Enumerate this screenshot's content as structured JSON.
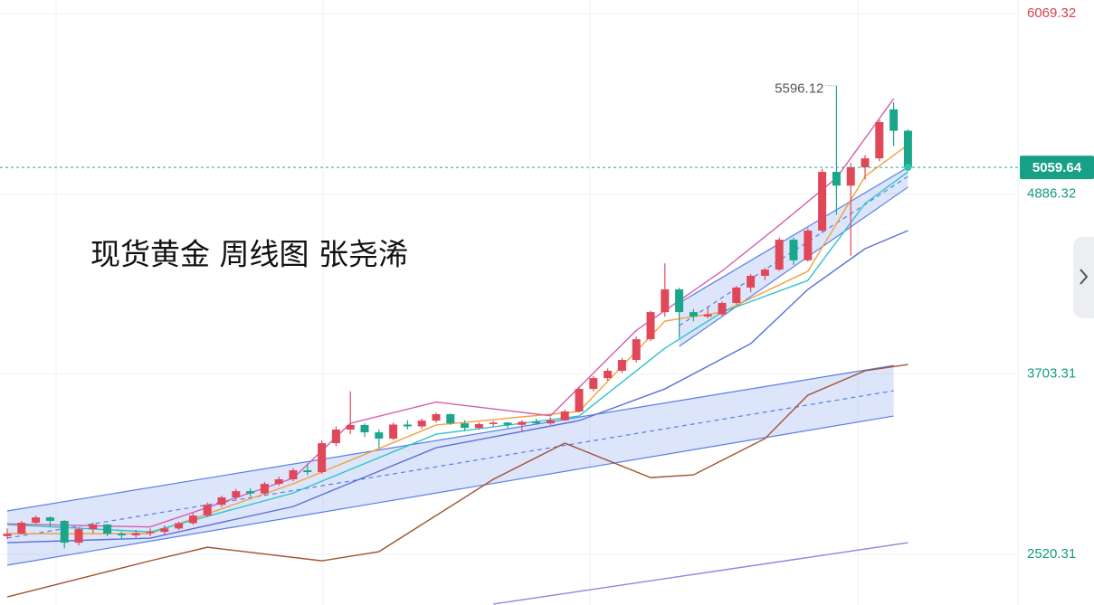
{
  "chart_data": {
    "type": "candlestick",
    "title": "现货黄金 周线图 张尧浠",
    "ylim": [
      2188,
      6158
    ],
    "yticks": [
      6069.32,
      4886.32,
      3703.31,
      2520.31
    ],
    "up_color": "#e0485a",
    "down_color": "#1aa68a",
    "candles": [
      [
        2640,
        2690,
        2620,
        2656
      ],
      [
        2656,
        2740,
        2650,
        2728
      ],
      [
        2728,
        2775,
        2720,
        2763
      ],
      [
        2763,
        2770,
        2700,
        2740
      ],
      [
        2740,
        2745,
        2560,
        2597
      ],
      [
        2597,
        2700,
        2580,
        2686
      ],
      [
        2686,
        2730,
        2660,
        2716
      ],
      [
        2716,
        2720,
        2640,
        2656
      ],
      [
        2656,
        2670,
        2620,
        2645
      ],
      [
        2645,
        2680,
        2630,
        2660
      ],
      [
        2660,
        2690,
        2640,
        2668
      ],
      [
        2668,
        2710,
        2650,
        2690
      ],
      [
        2690,
        2735,
        2680,
        2725
      ],
      [
        2725,
        2790,
        2715,
        2775
      ],
      [
        2775,
        2860,
        2765,
        2846
      ],
      [
        2846,
        2905,
        2830,
        2894
      ],
      [
        2894,
        2950,
        2880,
        2935
      ],
      [
        2935,
        2955,
        2900,
        2920
      ],
      [
        2920,
        2995,
        2910,
        2983
      ],
      [
        2983,
        3030,
        2970,
        3013
      ],
      [
        3013,
        3085,
        3000,
        3072
      ],
      [
        3072,
        3110,
        3040,
        3060
      ],
      [
        3060,
        3270,
        3050,
        3250
      ],
      [
        3250,
        3360,
        3230,
        3339
      ],
      [
        3339,
        3590,
        3310,
        3369
      ],
      [
        3369,
        3380,
        3290,
        3321
      ],
      [
        3321,
        3340,
        3220,
        3280
      ],
      [
        3280,
        3385,
        3270,
        3372
      ],
      [
        3372,
        3400,
        3340,
        3360
      ],
      [
        3360,
        3410,
        3345,
        3398
      ],
      [
        3398,
        3450,
        3385,
        3440
      ],
      [
        3440,
        3445,
        3370,
        3380
      ],
      [
        3380,
        3400,
        3330,
        3350
      ],
      [
        3350,
        3385,
        3340,
        3375
      ],
      [
        3375,
        3395,
        3360,
        3385
      ],
      [
        3385,
        3390,
        3350,
        3370
      ],
      [
        3370,
        3400,
        3330,
        3390
      ],
      [
        3390,
        3410,
        3370,
        3380
      ],
      [
        3380,
        3420,
        3370,
        3400
      ],
      [
        3400,
        3470,
        3395,
        3458
      ],
      [
        3458,
        3620,
        3450,
        3606
      ],
      [
        3606,
        3690,
        3590,
        3677
      ],
      [
        3677,
        3740,
        3660,
        3725
      ],
      [
        3725,
        3810,
        3710,
        3796
      ],
      [
        3796,
        3950,
        3780,
        3932
      ],
      [
        3932,
        4120,
        3920,
        4110
      ],
      [
        4110,
        4430,
        4080,
        4259
      ],
      [
        4259,
        4270,
        3940,
        4110
      ],
      [
        4110,
        4130,
        4050,
        4081
      ],
      [
        4081,
        4140,
        4070,
        4095
      ],
      [
        4095,
        4180,
        4085,
        4170
      ],
      [
        4170,
        4280,
        4160,
        4271
      ],
      [
        4271,
        4360,
        4240,
        4348
      ],
      [
        4348,
        4400,
        4320,
        4389
      ],
      [
        4389,
        4600,
        4380,
        4585
      ],
      [
        4585,
        4600,
        4420,
        4450
      ],
      [
        4450,
        4660,
        4440,
        4645
      ],
      [
        4645,
        5050,
        4630,
        5030
      ],
      [
        5030,
        5596.12,
        4750,
        4940
      ],
      [
        4940,
        5090,
        4480,
        5060
      ],
      [
        5060,
        5140,
        4980,
        5119
      ],
      [
        5119,
        5370,
        5100,
        5357
      ],
      [
        5440,
        5487,
        5200,
        5300
      ],
      [
        5300,
        5310,
        5040,
        5059.64
      ]
    ],
    "lines": [
      {
        "color": "#f2a03d",
        "x": [
          0,
          10,
          20,
          30,
          40,
          46,
          50,
          56,
          60,
          63
        ],
        "values": [
          2656,
          2656,
          2983,
          3369,
          3458,
          4051,
          4110,
          4378,
          5001,
          5208
        ]
      },
      {
        "color": "#2ec4c8",
        "x": [
          0,
          10,
          20,
          30,
          40,
          46,
          50,
          56,
          60,
          63
        ],
        "values": [
          2716,
          2668,
          2923,
          3309,
          3428,
          3873,
          4110,
          4318,
          4823,
          5030
        ]
      },
      {
        "color": "#5b6fd8",
        "x": [
          0,
          10,
          20,
          30,
          40,
          46,
          52,
          56,
          60,
          63
        ],
        "values": [
          2597,
          2627,
          2834,
          3220,
          3398,
          3606,
          3903,
          4259,
          4526,
          4645
        ]
      },
      {
        "color": "#a0522d",
        "x": [
          0,
          10,
          14,
          22,
          26,
          34,
          39,
          45,
          48,
          53,
          56,
          60,
          63
        ],
        "values": [
          2241,
          2478,
          2567,
          2478,
          2538,
          3013,
          3250,
          3024,
          3042,
          3280,
          3565,
          3725,
          3766
        ]
      },
      {
        "color": "#9b7fe0",
        "x": [
          34,
          63
        ],
        "values": [
          2194,
          2597
        ]
      },
      {
        "color": "#d25fb0",
        "x": [
          0,
          10,
          20,
          24,
          30,
          38,
          44,
          50,
          54,
          58,
          62
        ],
        "values": [
          2720,
          2700,
          3020,
          3380,
          3520,
          3430,
          3990,
          4380,
          4680,
          4990,
          5510
        ]
      }
    ],
    "channels": [
      {
        "x": [
          0,
          62
        ],
        "upper": [
          2805,
          3760
        ],
        "lower": [
          2449,
          3428
        ],
        "mid": [
          2627,
          3594
        ]
      },
      {
        "x": [
          47,
          63
        ],
        "upper": [
          4170,
          5060
        ],
        "lower": [
          3885,
          4930
        ],
        "mid": [
          4021,
          5000
        ]
      }
    ]
  }
}
